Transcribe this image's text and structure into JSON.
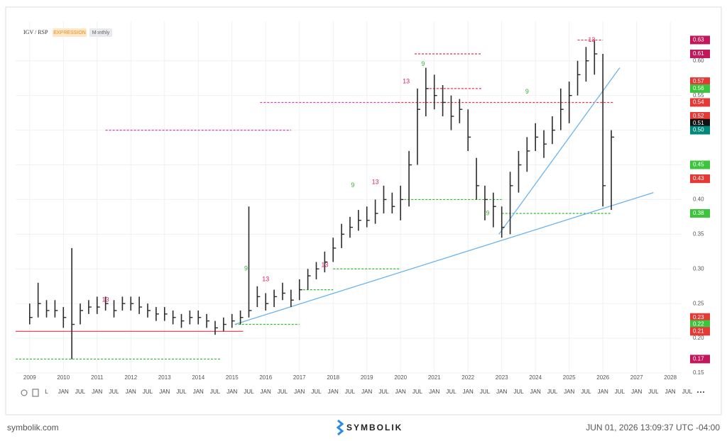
{
  "chart_data": {
    "type": "ohlc",
    "title": "IGV / RSP",
    "badge": "EXPRESSION",
    "interval": "Monthly",
    "x": [
      "2009-01",
      "2009-04",
      "2009-07",
      "2009-10",
      "2010-01",
      "2010-04",
      "2010-07",
      "2010-10",
      "2011-01",
      "2011-04",
      "2011-07",
      "2011-10",
      "2012-01",
      "2012-04",
      "2012-07",
      "2012-10",
      "2013-01",
      "2013-04",
      "2013-07",
      "2013-10",
      "2014-01",
      "2014-04",
      "2014-07",
      "2014-10",
      "2015-01",
      "2015-04",
      "2015-07",
      "2015-10",
      "2016-01",
      "2016-04",
      "2016-07",
      "2016-10",
      "2017-01",
      "2017-04",
      "2017-07",
      "2017-10",
      "2018-01",
      "2018-04",
      "2018-07",
      "2018-10",
      "2019-01",
      "2019-04",
      "2019-07",
      "2019-10",
      "2020-01",
      "2020-04",
      "2020-07",
      "2020-10",
      "2021-01",
      "2021-04",
      "2021-07",
      "2021-10",
      "2022-01",
      "2022-04",
      "2022-07",
      "2022-10",
      "2023-01",
      "2023-04",
      "2023-07",
      "2023-10",
      "2024-01",
      "2024-04",
      "2024-07",
      "2024-10",
      "2025-01",
      "2025-04",
      "2025-07",
      "2025-10",
      "2026-01",
      "2026-04"
    ],
    "high": [
      0.25,
      0.28,
      0.255,
      0.255,
      0.245,
      0.33,
      0.25,
      0.255,
      0.26,
      0.26,
      0.255,
      0.26,
      0.26,
      0.26,
      0.25,
      0.245,
      0.245,
      0.24,
      0.235,
      0.24,
      0.24,
      0.235,
      0.225,
      0.23,
      0.235,
      0.24,
      0.39,
      0.275,
      0.265,
      0.27,
      0.28,
      0.27,
      0.285,
      0.3,
      0.31,
      0.325,
      0.345,
      0.365,
      0.375,
      0.385,
      0.39,
      0.4,
      0.42,
      0.41,
      0.42,
      0.47,
      0.56,
      0.59,
      0.58,
      0.565,
      0.55,
      0.545,
      0.53,
      0.46,
      0.42,
      0.41,
      0.39,
      0.44,
      0.47,
      0.49,
      0.51,
      0.5,
      0.52,
      0.56,
      0.57,
      0.6,
      0.62,
      0.63,
      0.61,
      0.5
    ],
    "low": [
      0.22,
      0.23,
      0.23,
      0.23,
      0.215,
      0.17,
      0.22,
      0.235,
      0.235,
      0.24,
      0.23,
      0.24,
      0.24,
      0.235,
      0.23,
      0.225,
      0.225,
      0.22,
      0.215,
      0.22,
      0.22,
      0.215,
      0.205,
      0.21,
      0.215,
      0.22,
      0.23,
      0.245,
      0.24,
      0.245,
      0.255,
      0.245,
      0.255,
      0.27,
      0.285,
      0.295,
      0.31,
      0.33,
      0.345,
      0.355,
      0.36,
      0.365,
      0.38,
      0.38,
      0.37,
      0.39,
      0.45,
      0.52,
      0.53,
      0.52,
      0.5,
      0.51,
      0.47,
      0.4,
      0.37,
      0.36,
      0.345,
      0.35,
      0.41,
      0.44,
      0.47,
      0.46,
      0.48,
      0.5,
      0.51,
      0.55,
      0.57,
      0.58,
      0.39,
      0.385
    ],
    "close": [
      0.23,
      0.25,
      0.24,
      0.24,
      0.23,
      0.22,
      0.24,
      0.245,
      0.245,
      0.25,
      0.24,
      0.25,
      0.25,
      0.245,
      0.24,
      0.235,
      0.235,
      0.23,
      0.225,
      0.23,
      0.23,
      0.225,
      0.215,
      0.22,
      0.225,
      0.23,
      0.24,
      0.26,
      0.25,
      0.26,
      0.265,
      0.255,
      0.27,
      0.29,
      0.3,
      0.31,
      0.33,
      0.35,
      0.36,
      0.37,
      0.37,
      0.38,
      0.4,
      0.39,
      0.4,
      0.45,
      0.53,
      0.56,
      0.55,
      0.54,
      0.52,
      0.53,
      0.49,
      0.42,
      0.4,
      0.39,
      0.36,
      0.42,
      0.45,
      0.47,
      0.49,
      0.48,
      0.5,
      0.53,
      0.55,
      0.58,
      0.6,
      0.61,
      0.42,
      0.49
    ],
    "color": "#2b2b2b",
    "xlim": [
      "2008-08",
      "2028-05"
    ],
    "ylim": [
      0.1357,
      0.657
    ],
    "yticks": [
      {
        "value": 0.15,
        "label": "0.15"
      },
      {
        "value": 0.2,
        "label": "0.20"
      },
      {
        "value": 0.25,
        "label": "0.25"
      },
      {
        "value": 0.3,
        "label": "0.30"
      },
      {
        "value": 0.35,
        "label": "0.35"
      },
      {
        "value": 0.4,
        "label": "0.40"
      },
      {
        "value": 0.45,
        "label": "0.45"
      },
      {
        "value": 0.5,
        "label": "0.50"
      },
      {
        "value": 0.55,
        "label": "0.55"
      },
      {
        "value": 0.6,
        "label": "0.60"
      }
    ],
    "xticks": [
      {
        "value": "2009-01",
        "label": "2009"
      },
      {
        "value": "2010-01",
        "label": "2010"
      },
      {
        "value": "2011-01",
        "label": "2011"
      },
      {
        "value": "2012-01",
        "label": "2012"
      },
      {
        "value": "2013-01",
        "label": "2013"
      },
      {
        "value": "2014-01",
        "label": "2014"
      },
      {
        "value": "2015-01",
        "label": "2015"
      },
      {
        "value": "2016-01",
        "label": "2016"
      },
      {
        "value": "2017-01",
        "label": "2017"
      },
      {
        "value": "2018-01",
        "label": "2018"
      },
      {
        "value": "2019-01",
        "label": "2019"
      },
      {
        "value": "2020-01",
        "label": "2020"
      },
      {
        "value": "2021-01",
        "label": "2021"
      },
      {
        "value": "2022-01",
        "label": "2022"
      },
      {
        "value": "2023-01",
        "label": "2023"
      },
      {
        "value": "2024-01",
        "label": "2024"
      },
      {
        "value": "2025-01",
        "label": "2025"
      },
      {
        "value": "2026-01",
        "label": "2026"
      },
      {
        "value": "2027-01",
        "label": "2027"
      },
      {
        "value": "2028-01",
        "label": "2028"
      }
    ],
    "xticks_minor": [
      {
        "value": "2009-07",
        "label": "L"
      },
      {
        "value": "2010-01",
        "label": "JAN"
      },
      {
        "value": "2010-07",
        "label": "JUL"
      },
      {
        "value": "2011-01",
        "label": "JAN"
      },
      {
        "value": "2011-07",
        "label": "JUL"
      },
      {
        "value": "2012-01",
        "label": "JAN"
      },
      {
        "value": "2012-07",
        "label": "JUL"
      },
      {
        "value": "2013-01",
        "label": "JAN"
      },
      {
        "value": "2013-07",
        "label": "JUL"
      },
      {
        "value": "2014-01",
        "label": "JAN"
      },
      {
        "value": "2014-07",
        "label": "JUL"
      },
      {
        "value": "2015-01",
        "label": "JAN"
      },
      {
        "value": "2015-07",
        "label": "JUL"
      },
      {
        "value": "2016-01",
        "label": "JAN"
      },
      {
        "value": "2016-07",
        "label": "JUL"
      },
      {
        "value": "2017-01",
        "label": "JAN"
      },
      {
        "value": "2017-07",
        "label": "JUL"
      },
      {
        "value": "2018-01",
        "label": "JAN"
      },
      {
        "value": "2018-07",
        "label": "JUL"
      },
      {
        "value": "2019-01",
        "label": "JAN"
      },
      {
        "value": "2019-07",
        "label": "JUL"
      },
      {
        "value": "2020-01",
        "label": "JAN"
      },
      {
        "value": "2020-07",
        "label": "JUL"
      },
      {
        "value": "2021-01",
        "label": "JAN"
      },
      {
        "value": "2021-07",
        "label": "JUL"
      },
      {
        "value": "2022-01",
        "label": "JAN"
      },
      {
        "value": "2022-07",
        "label": "JUL"
      },
      {
        "value": "2023-01",
        "label": "JAN"
      },
      {
        "value": "2023-07",
        "label": "JUL"
      },
      {
        "value": "2024-01",
        "label": "JAN"
      },
      {
        "value": "2024-07",
        "label": "JUL"
      },
      {
        "value": "2025-01",
        "label": "JAN"
      },
      {
        "value": "2025-07",
        "label": "JUL"
      },
      {
        "value": "2026-01",
        "label": "JAN"
      },
      {
        "value": "2026-07",
        "label": "JUL"
      },
      {
        "value": "2027-01",
        "label": "JAN"
      },
      {
        "value": "2027-07",
        "label": "JUL"
      },
      {
        "value": "2028-01",
        "label": "JAN"
      },
      {
        "value": "2028-07",
        "label": "JUL"
      }
    ],
    "grid": true,
    "levels": [
      {
        "y": 0.21,
        "x": [
          "2008-08",
          "2015-05"
        ],
        "color": "#e8334a",
        "dashed": false
      },
      {
        "y": 0.17,
        "x": [
          "2008-08",
          "2014-09"
        ],
        "color": "#33bb33",
        "dashed": true
      },
      {
        "y": 0.22,
        "x": [
          "2015-02",
          "2017-01"
        ],
        "color": "#33bb33",
        "dashed": true
      },
      {
        "y": 0.27,
        "x": [
          "2017-01",
          "2018-01"
        ],
        "color": "#33bb33",
        "dashed": true
      },
      {
        "y": 0.3,
        "x": [
          "2018-01",
          "2020-01"
        ],
        "color": "#33bb33",
        "dashed": true
      },
      {
        "y": 0.4,
        "x": [
          "2020-01",
          "2023-01"
        ],
        "color": "#33bb33",
        "dashed": true
      },
      {
        "y": 0.38,
        "x": [
          "2023-01",
          "2026-04"
        ],
        "color": "#33bb33",
        "dashed": true
      },
      {
        "y": 0.5,
        "x": [
          "2011-04",
          "2016-10"
        ],
        "color": "#d63cc0",
        "dashed": true
      },
      {
        "y": 0.54,
        "x": [
          "2015-11",
          "2019-12"
        ],
        "color": "#d63cc0",
        "dashed": true
      },
      {
        "y": 0.54,
        "x": [
          "2019-12",
          "2026-05"
        ],
        "color": "#e8334a",
        "dashed": true
      },
      {
        "y": 0.61,
        "x": [
          "2020-06",
          "2022-06"
        ],
        "color": "#e8334a",
        "dashed": true
      },
      {
        "y": 0.56,
        "x": [
          "2020-10",
          "2022-06"
        ],
        "color": "#e8334a",
        "dashed": true
      },
      {
        "y": 0.63,
        "x": [
          "2025-04",
          "2026-01"
        ],
        "color": "#e8334a",
        "dashed": true
      }
    ],
    "trendlines": [
      {
        "x": [
          "2015-02",
          "2027-07"
        ],
        "y": [
          0.22,
          0.41
        ],
        "color": "#6cb4ee"
      },
      {
        "x": [
          "2022-12",
          "2026-07"
        ],
        "y": [
          0.35,
          0.59
        ],
        "color": "#6cb4ee"
      }
    ],
    "counts": [
      {
        "x": "2011-04",
        "y": 0.255,
        "label": "13",
        "color": "#e0245e"
      },
      {
        "x": "2016-01",
        "y": 0.285,
        "label": "13",
        "color": "#e0245e"
      },
      {
        "x": "2017-10",
        "y": 0.305,
        "label": "13",
        "color": "#e0245e"
      },
      {
        "x": "2019-04",
        "y": 0.425,
        "label": "13",
        "color": "#e0245e"
      },
      {
        "x": "2020-03",
        "y": 0.57,
        "label": "13",
        "color": "#e0245e"
      },
      {
        "x": "2025-09",
        "y": 0.63,
        "label": "13",
        "color": "#e0245e"
      },
      {
        "x": "2015-06",
        "y": 0.3,
        "label": "9",
        "color": "#2db82d"
      },
      {
        "x": "2018-08",
        "y": 0.42,
        "label": "9",
        "color": "#2db82d"
      },
      {
        "x": "2020-09",
        "y": 0.595,
        "label": "9",
        "color": "#2db82d"
      },
      {
        "x": "2022-08",
        "y": 0.38,
        "label": "9",
        "color": "#2db82d"
      },
      {
        "x": "2023-10",
        "y": 0.555,
        "label": "9",
        "color": "#2db82d"
      }
    ],
    "price_labels": [
      {
        "value": 0.63,
        "label": "0.63",
        "color": "#c2185b"
      },
      {
        "value": 0.61,
        "label": "0.61",
        "color": "#c2185b"
      },
      {
        "value": 0.57,
        "label": "0.57",
        "color": "#e53935"
      },
      {
        "value": 0.56,
        "label": "0.56",
        "color": "#3cc43c"
      },
      {
        "value": 0.54,
        "label": "0.54",
        "color": "#e53935"
      },
      {
        "value": 0.52,
        "label": "0.52",
        "color": "#e53935"
      },
      {
        "value": 0.51,
        "label": "0.51",
        "color": "#111111"
      },
      {
        "value": 0.5,
        "label": "0.50",
        "color": "#00897b"
      },
      {
        "value": 0.45,
        "label": "0.45",
        "color": "#3cc43c"
      },
      {
        "value": 0.43,
        "label": "0.43",
        "color": "#c2185b"
      },
      {
        "value": 0.43,
        "label": "0.43",
        "color": "#e53935"
      },
      {
        "value": 0.38,
        "label": "0.38",
        "color": "#3cc43c"
      },
      {
        "value": 0.23,
        "label": "0.23",
        "color": "#e53935"
      },
      {
        "value": 0.22,
        "label": "0.22",
        "color": "#3cc43c"
      },
      {
        "value": 0.21,
        "label": "0.21",
        "color": "#e53935"
      },
      {
        "value": 0.17,
        "label": "0.17",
        "color": "#c2185b"
      }
    ]
  },
  "footer": {
    "site": "symbolik.com",
    "brand": "SYMBOLIK",
    "timestamp": "JUN 01, 2026 13:09:37 UTC -04:00"
  }
}
